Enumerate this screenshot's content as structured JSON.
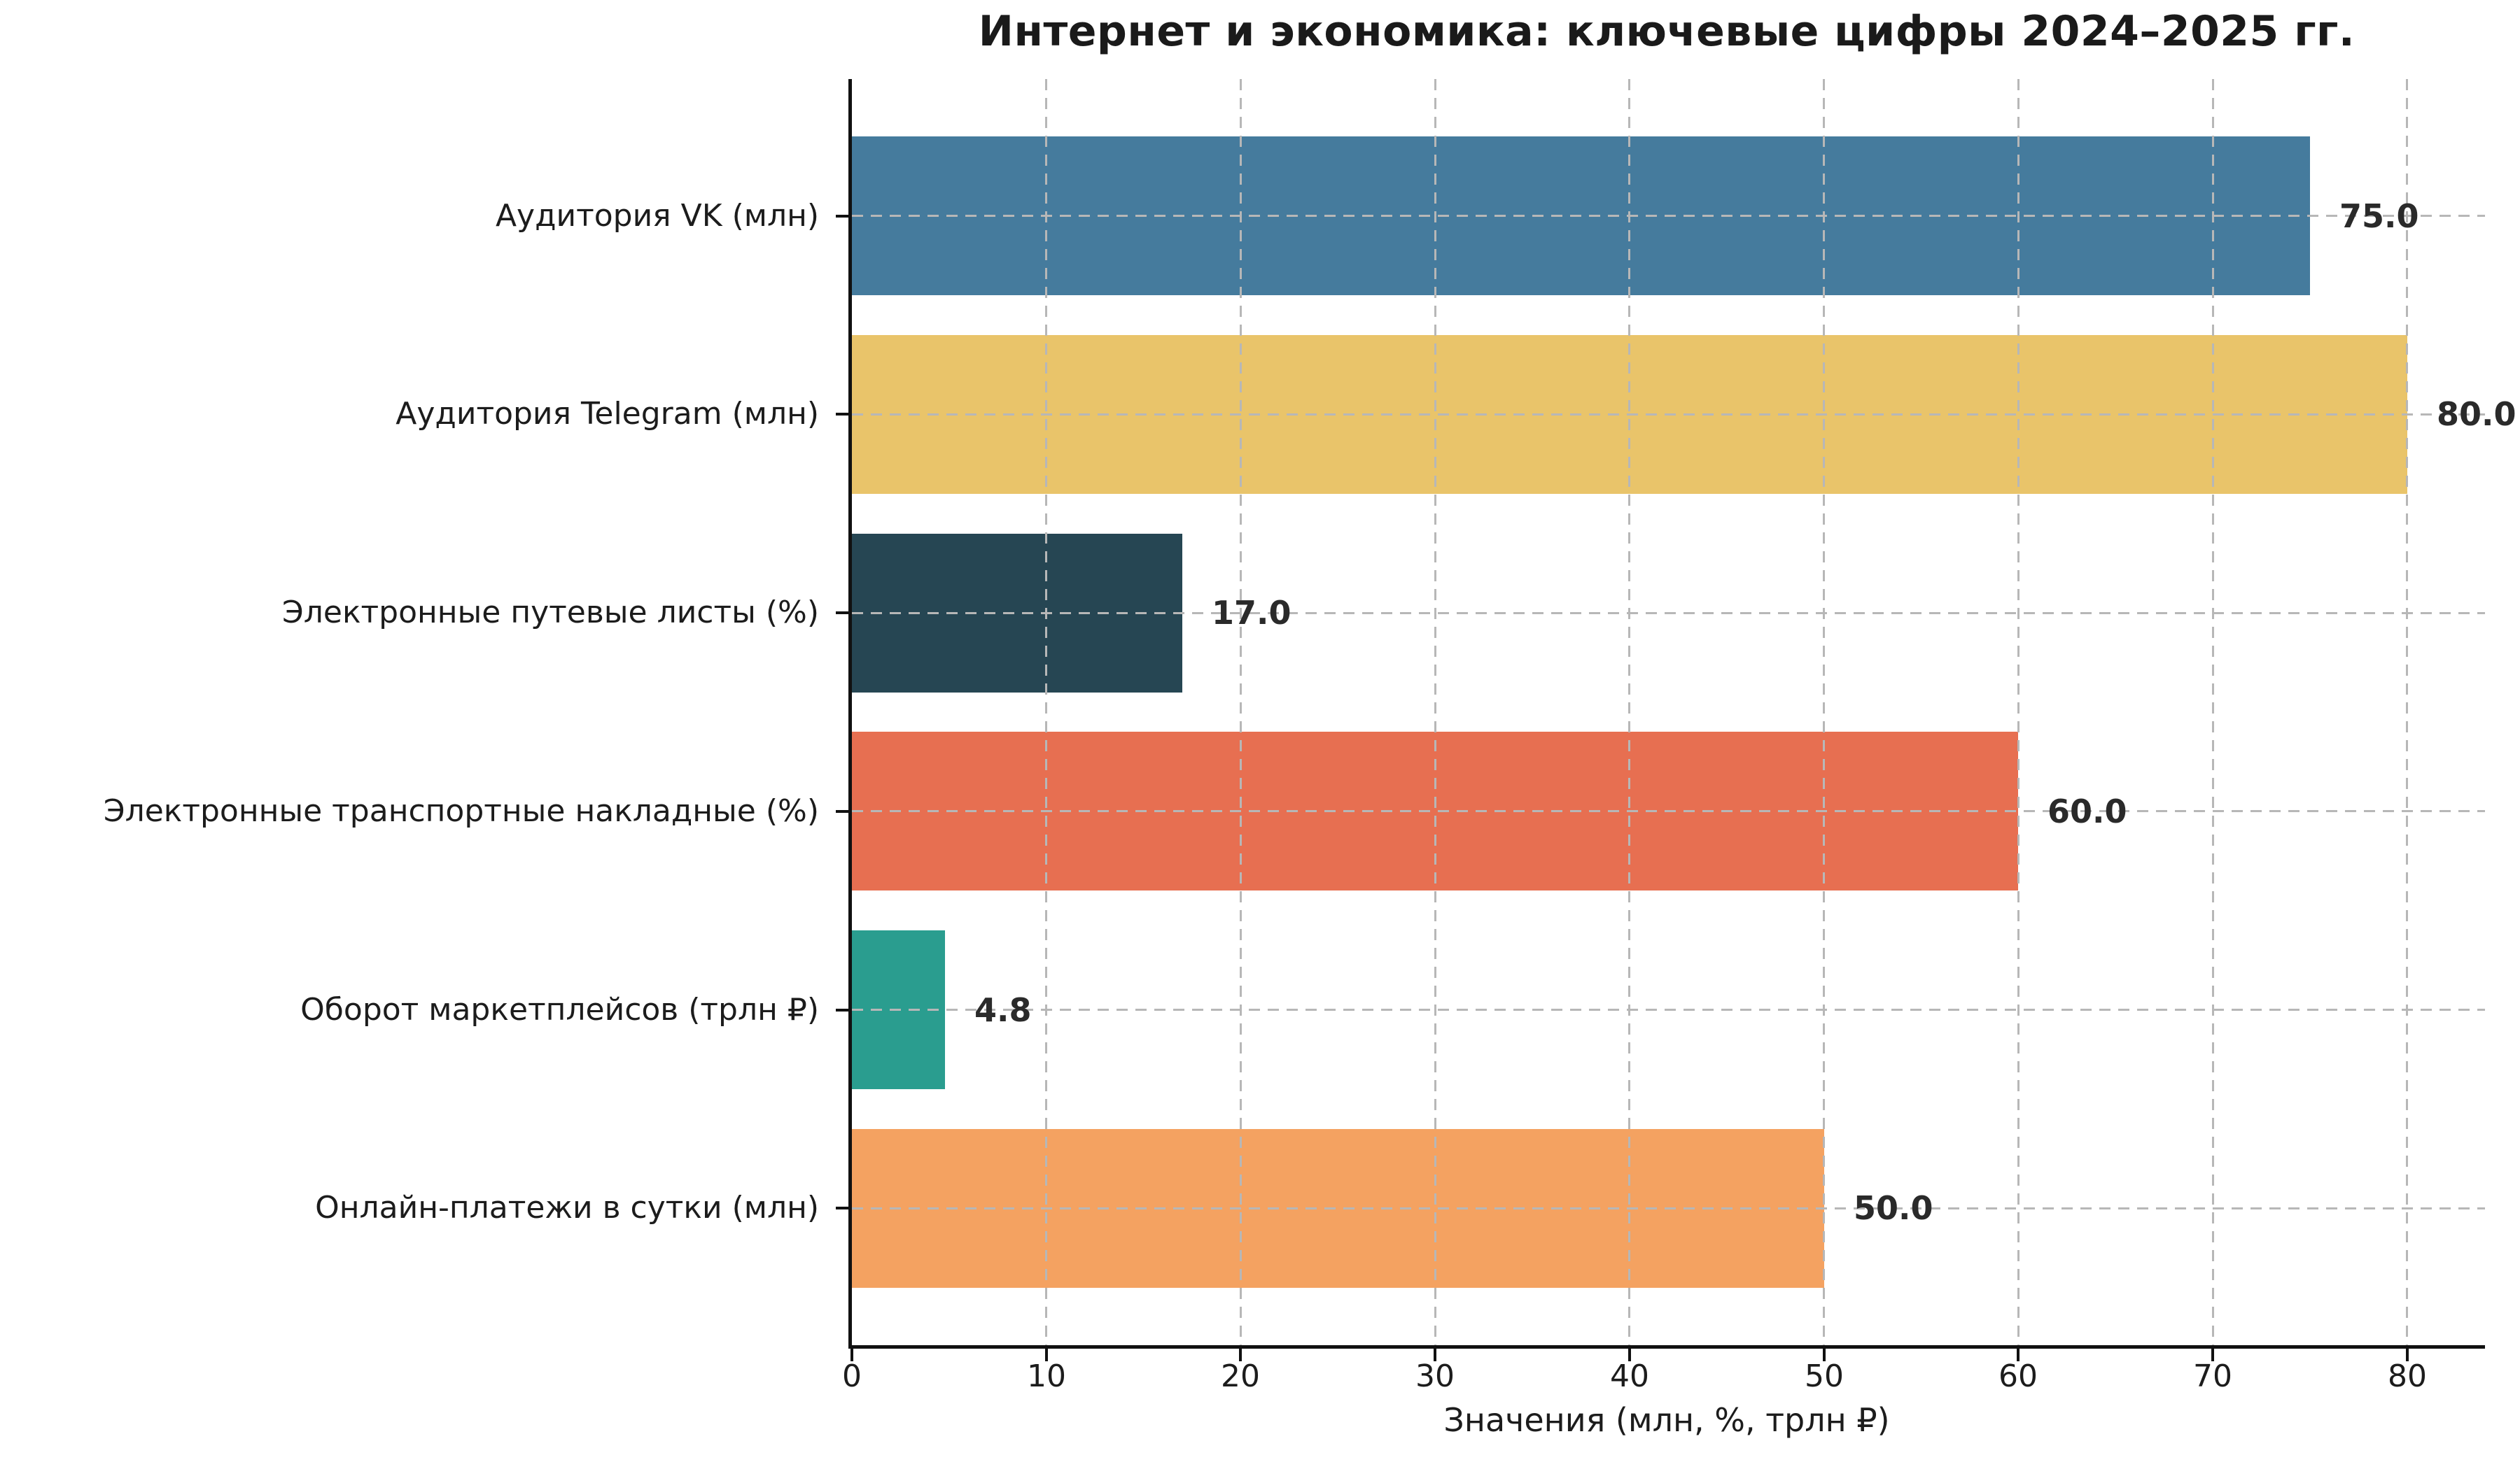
{
  "title": "Интернет и экономика: ключевые цифры 2024–2025 гг.",
  "xlabel": "Значения (млн, %, трлн ₽)",
  "chart_data": {
    "type": "bar",
    "orientation": "horizontal",
    "title": "Интернет и экономика: ключевые цифры 2024–2025 гг.",
    "xlabel": "Значения (млн, %, трлн ₽)",
    "ylabel": "",
    "categories": [
      "Аудитория VK (млн)",
      "Аудитория Telegram (млн)",
      "Электронные путевые листы (%)",
      "Электронные транспортные накладные (%)",
      "Оборот маркетплейсов (трлн ₽)",
      "Онлайн-платежи в сутки (млн)"
    ],
    "values": [
      75.0,
      80.0,
      17.0,
      60.0,
      4.8,
      50.0
    ],
    "value_labels": [
      "75.0",
      "80.0",
      "17.0",
      "60.0",
      "4.8",
      "50.0"
    ],
    "bar_colors": [
      "#457b9d",
      "#e9c46a",
      "#264653",
      "#e76f51",
      "#2a9d8f",
      "#f4a261"
    ],
    "xlim": [
      0,
      84
    ],
    "xticks": [
      0,
      10,
      20,
      30,
      40,
      50,
      60,
      70,
      80
    ],
    "grid": "both",
    "grid_style": "dashed",
    "grid_color": "#b7b7b7",
    "axis_color": "#111111",
    "legend": "none"
  }
}
